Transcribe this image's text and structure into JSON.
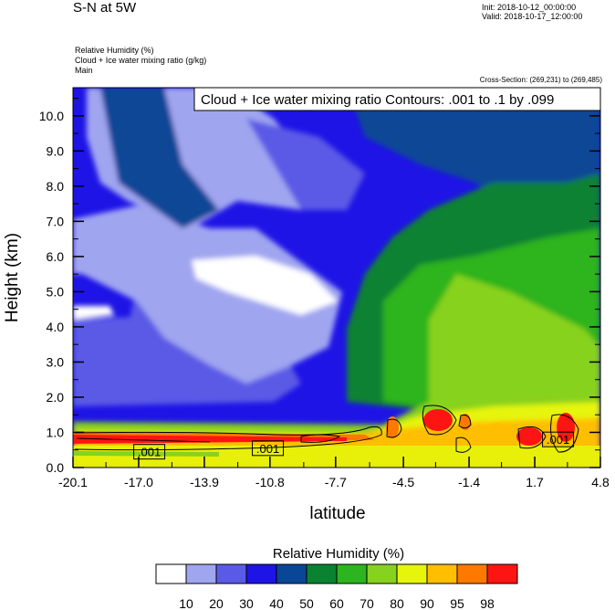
{
  "header": {
    "title": "S-N at 5W",
    "init": "Init: 2018-10-12_00:00:00",
    "valid": "Valid: 2018-10-17_12:00:00"
  },
  "subtitles": [
    "Relative Humidity   (%)",
    "Cloud + Ice water mixing ratio   (g/kg)",
    "Main"
  ],
  "cross_section": "Cross-Section: (269,231) to (269,485)",
  "chart_data": {
    "type": "heatmap",
    "description_label": "Cloud + Ice water mixing ratio Contours: .001 to .1 by .099",
    "xlabel": "latitude",
    "ylabel": "Height (km)",
    "xlim": [
      -20.1,
      4.8
    ],
    "ylim": [
      0.0,
      10.8
    ],
    "x_ticks": [
      "-20.1",
      "-17.0",
      "-13.9",
      "-10.8",
      "-7.7",
      "-4.5",
      "-1.4",
      "1.7",
      "4.8"
    ],
    "y_ticks": [
      "0.0",
      "1.0",
      "2.0",
      "3.0",
      "4.0",
      "5.0",
      "6.0",
      "7.0",
      "8.0",
      "9.0",
      "10.0"
    ],
    "contour_labels": [
      {
        "text": ".001",
        "lat": -16.5,
        "height": 0.45
      },
      {
        "text": ".001",
        "lat": -10.9,
        "height": 0.55
      },
      {
        "text": ".001",
        "lat": 2.8,
        "height": 0.8
      }
    ],
    "colorbar": {
      "title": "Relative Humidity  (%)",
      "levels": [
        "10",
        "20",
        "30",
        "40",
        "50",
        "60",
        "70",
        "80",
        "90",
        "95",
        "98"
      ],
      "colors": [
        "#ffffff",
        "#a0a5f0",
        "#5a5ae6",
        "#1e14e6",
        "#0a4696",
        "#0a8232",
        "#2db41e",
        "#87d21e",
        "#e6f50a",
        "#ffbe00",
        "#ff7800",
        "#ff1414"
      ]
    }
  }
}
